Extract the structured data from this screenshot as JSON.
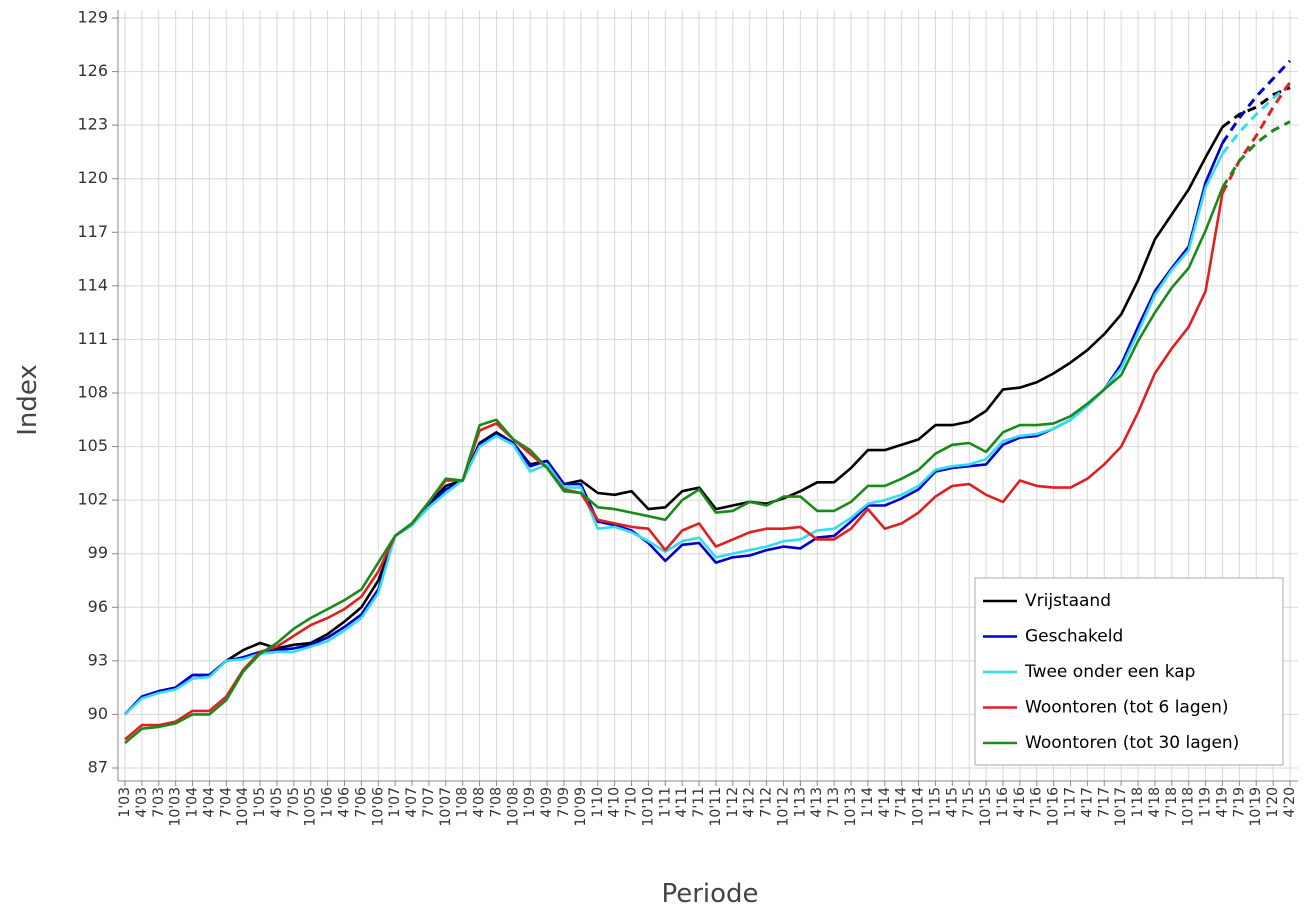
{
  "chart_data": {
    "type": "line",
    "x_label": "Periode",
    "y_label": "Index",
    "categories": [
      "1'03",
      "4'03",
      "7'03",
      "10'03",
      "1'04",
      "4'04",
      "7'04",
      "10'04",
      "1'05",
      "4'05",
      "7'05",
      "10'05",
      "1'06",
      "4'06",
      "7'06",
      "10'06",
      "1'07",
      "4'07",
      "7'07",
      "10'07",
      "1'08",
      "4'08",
      "7'08",
      "10'08",
      "1'09",
      "4'09",
      "7'09",
      "10'09",
      "1'10",
      "4'10",
      "7'10",
      "10'10",
      "1'11",
      "4'11",
      "7'11",
      "10'11",
      "1'12",
      "4'12",
      "7'12",
      "10'12",
      "1'13",
      "4'13",
      "7'13",
      "10'13",
      "1'14",
      "4'14",
      "7'14",
      "10'14",
      "1'15",
      "4'15",
      "7'15",
      "10'15",
      "1'16",
      "4'16",
      "7'16",
      "10'16",
      "1'17",
      "4'17",
      "7'17",
      "10'17",
      "1'18",
      "4'18",
      "7'18",
      "10'18",
      "1'19",
      "4'19",
      "7'19",
      "10'19",
      "1'20",
      "4'20"
    ],
    "ylim": [
      87,
      129
    ],
    "yticks": [
      87,
      90,
      93,
      96,
      99,
      102,
      105,
      108,
      111,
      114,
      117,
      120,
      123,
      126,
      129
    ],
    "grid": true,
    "legend": "lower right",
    "series": [
      {
        "name": "Vrijstaand",
        "color": "#000000",
        "values": [
          90.0,
          91.0,
          91.3,
          91.5,
          92.2,
          92.2,
          93.0,
          93.6,
          94.0,
          93.7,
          93.9,
          94.0,
          94.5,
          95.2,
          96.0,
          97.5,
          100.0,
          100.7,
          101.8,
          102.8,
          103.1,
          105.2,
          105.8,
          105.2,
          104.0,
          104.2,
          102.9,
          103.1,
          102.4,
          102.3,
          102.5,
          101.5,
          101.6,
          102.5,
          102.7,
          101.5,
          101.7,
          101.9,
          101.8,
          102.1,
          102.5,
          103.0,
          103.0,
          103.8,
          104.8,
          104.8,
          105.1,
          105.4,
          106.2,
          106.2,
          106.4,
          107.0,
          108.2,
          108.3,
          108.6,
          109.1,
          109.7,
          110.4,
          111.3,
          112.4,
          114.3,
          116.6,
          118.0,
          119.4,
          121.2,
          122.9,
          null,
          null,
          null,
          null
        ],
        "forecast": [
          null,
          null,
          null,
          null,
          null,
          null,
          null,
          null,
          null,
          null,
          null,
          null,
          null,
          null,
          null,
          null,
          null,
          null,
          null,
          null,
          null,
          null,
          null,
          null,
          null,
          null,
          null,
          null,
          null,
          null,
          null,
          null,
          null,
          null,
          null,
          null,
          null,
          null,
          null,
          null,
          null,
          null,
          null,
          null,
          null,
          null,
          null,
          null,
          null,
          null,
          null,
          null,
          null,
          null,
          null,
          null,
          null,
          null,
          null,
          null,
          null,
          null,
          null,
          null,
          null,
          122.9,
          123.6,
          124.0,
          124.7,
          125.1
        ]
      },
      {
        "name": "Geschakeld",
        "color": "#0000cc",
        "values": [
          90.0,
          91.0,
          91.3,
          91.5,
          92.2,
          92.2,
          93.0,
          93.2,
          93.5,
          93.6,
          93.7,
          93.9,
          94.3,
          94.9,
          95.6,
          97.0,
          100.0,
          100.6,
          101.7,
          102.6,
          103.1,
          105.1,
          105.7,
          105.2,
          103.9,
          104.2,
          102.9,
          102.9,
          100.8,
          100.6,
          100.3,
          99.6,
          98.6,
          99.5,
          99.6,
          98.5,
          98.8,
          98.9,
          99.2,
          99.4,
          99.3,
          99.9,
          100.0,
          100.8,
          101.7,
          101.7,
          102.1,
          102.6,
          103.6,
          103.8,
          103.9,
          104.0,
          105.1,
          105.5,
          105.6,
          106.0,
          106.5,
          107.3,
          108.2,
          109.6,
          111.7,
          113.7,
          115.0,
          116.2,
          119.8,
          122.0,
          null,
          null,
          null,
          null
        ],
        "forecast": [
          null,
          null,
          null,
          null,
          null,
          null,
          null,
          null,
          null,
          null,
          null,
          null,
          null,
          null,
          null,
          null,
          null,
          null,
          null,
          null,
          null,
          null,
          null,
          null,
          null,
          null,
          null,
          null,
          null,
          null,
          null,
          null,
          null,
          null,
          null,
          null,
          null,
          null,
          null,
          null,
          null,
          null,
          null,
          null,
          null,
          null,
          null,
          null,
          null,
          null,
          null,
          null,
          null,
          null,
          null,
          null,
          null,
          null,
          null,
          null,
          null,
          null,
          null,
          null,
          null,
          122.0,
          123.4,
          124.6,
          125.6,
          126.6
        ]
      },
      {
        "name": "Twee onder een kap",
        "color": "#33ddee",
        "values": [
          90.0,
          90.9,
          91.2,
          91.4,
          92.0,
          92.1,
          93.0,
          93.1,
          93.4,
          93.5,
          93.5,
          93.8,
          94.1,
          94.7,
          95.4,
          96.8,
          100.0,
          100.6,
          101.6,
          102.4,
          103.1,
          105.0,
          105.6,
          105.1,
          103.6,
          104.0,
          102.7,
          102.7,
          100.4,
          100.5,
          100.2,
          99.7,
          99.1,
          99.7,
          99.9,
          98.8,
          99.0,
          99.2,
          99.4,
          99.7,
          99.8,
          100.3,
          100.4,
          101.0,
          101.8,
          102.0,
          102.3,
          102.8,
          103.7,
          103.9,
          104.0,
          104.3,
          105.3,
          105.6,
          105.7,
          106.0,
          106.5,
          107.3,
          108.2,
          109.4,
          111.4,
          113.5,
          114.9,
          116.0,
          119.5,
          121.4,
          null,
          null,
          null,
          null
        ],
        "forecast": [
          null,
          null,
          null,
          null,
          null,
          null,
          null,
          null,
          null,
          null,
          null,
          null,
          null,
          null,
          null,
          null,
          null,
          null,
          null,
          null,
          null,
          null,
          null,
          null,
          null,
          null,
          null,
          null,
          null,
          null,
          null,
          null,
          null,
          null,
          null,
          null,
          null,
          null,
          null,
          null,
          null,
          null,
          null,
          null,
          null,
          null,
          null,
          null,
          null,
          null,
          null,
          null,
          null,
          null,
          null,
          null,
          null,
          null,
          null,
          null,
          null,
          null,
          null,
          null,
          null,
          121.4,
          122.6,
          123.6,
          124.5,
          125.3
        ]
      },
      {
        "name": "Woontoren (tot 6 lagen)",
        "color": "#e02020",
        "values": [
          88.6,
          89.4,
          89.4,
          89.6,
          90.2,
          90.2,
          91.0,
          92.5,
          93.5,
          93.8,
          94.4,
          95.0,
          95.4,
          95.9,
          96.6,
          98.0,
          100.0,
          100.7,
          101.9,
          103.1,
          103.1,
          105.9,
          106.3,
          105.4,
          104.6,
          103.8,
          102.6,
          102.4,
          100.9,
          100.7,
          100.5,
          100.4,
          99.2,
          100.3,
          100.7,
          99.4,
          99.8,
          100.2,
          100.4,
          100.4,
          100.5,
          99.8,
          99.8,
          100.4,
          101.5,
          100.4,
          100.7,
          101.3,
          102.2,
          102.8,
          102.9,
          102.3,
          101.9,
          103.1,
          102.8,
          102.7,
          102.7,
          103.2,
          104.0,
          105.0,
          106.9,
          109.1,
          110.5,
          111.7,
          113.7,
          119.2,
          null,
          null,
          null,
          null
        ],
        "forecast": [
          null,
          null,
          null,
          null,
          null,
          null,
          null,
          null,
          null,
          null,
          null,
          null,
          null,
          null,
          null,
          null,
          null,
          null,
          null,
          null,
          null,
          null,
          null,
          null,
          null,
          null,
          null,
          null,
          null,
          null,
          null,
          null,
          null,
          null,
          null,
          null,
          null,
          null,
          null,
          null,
          null,
          null,
          null,
          null,
          null,
          null,
          null,
          null,
          null,
          null,
          null,
          null,
          null,
          null,
          null,
          null,
          null,
          null,
          null,
          null,
          null,
          null,
          null,
          null,
          null,
          119.2,
          121.0,
          122.4,
          124.0,
          125.4
        ]
      },
      {
        "name": "Woontoren (tot 30 lagen)",
        "color": "#1a8a1a",
        "values": [
          88.4,
          89.2,
          89.3,
          89.5,
          90.0,
          90.0,
          90.8,
          92.4,
          93.4,
          94.0,
          94.8,
          95.4,
          95.9,
          96.4,
          97.0,
          98.5,
          100.0,
          100.7,
          101.9,
          103.2,
          103.1,
          106.2,
          106.5,
          105.4,
          104.8,
          103.8,
          102.5,
          102.4,
          101.6,
          101.5,
          101.3,
          101.1,
          100.9,
          102.0,
          102.6,
          101.3,
          101.4,
          101.9,
          101.7,
          102.2,
          102.2,
          101.4,
          101.4,
          101.9,
          102.8,
          102.8,
          103.2,
          103.7,
          104.6,
          105.1,
          105.2,
          104.7,
          105.8,
          106.2,
          106.2,
          106.3,
          106.7,
          107.4,
          108.2,
          109.0,
          110.9,
          112.5,
          113.9,
          115.0,
          117.1,
          119.5,
          null,
          null,
          null,
          null
        ],
        "forecast": [
          null,
          null,
          null,
          null,
          null,
          null,
          null,
          null,
          null,
          null,
          null,
          null,
          null,
          null,
          null,
          null,
          null,
          null,
          null,
          null,
          null,
          null,
          null,
          null,
          null,
          null,
          null,
          null,
          null,
          null,
          null,
          null,
          null,
          null,
          null,
          null,
          null,
          null,
          null,
          null,
          null,
          null,
          null,
          null,
          null,
          null,
          null,
          null,
          null,
          null,
          null,
          null,
          null,
          null,
          null,
          null,
          null,
          null,
          null,
          null,
          null,
          null,
          null,
          null,
          null,
          119.5,
          121.0,
          122.0,
          122.7,
          123.2
        ]
      }
    ]
  }
}
